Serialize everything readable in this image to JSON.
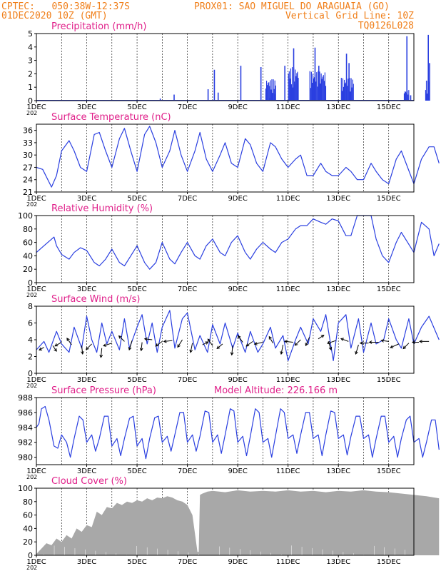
{
  "header": {
    "line1_left": "CPTEC:   050:38W-12:37S",
    "line1_right": "PROX01: SAO MIGUEL DO ARAGUAIA (GO)",
    "line2_left": "01DEC2020 10Z (GMT)",
    "line2_right": "Vertical Grid Line: 10Z",
    "line3_right": "TQ0126L028"
  },
  "colors": {
    "header_text": "#f07f1a",
    "panel_title": "#e0208a",
    "series_line": "#2a3fe0",
    "cloud_fill": "#a8a8a8",
    "axis": "#000000"
  },
  "x_axis": {
    "days": 15,
    "tick_labels": [
      "1DEC",
      "3DEC",
      "5DEC",
      "7DEC",
      "9DEC",
      "11DEC",
      "13DEC",
      "15DEC"
    ],
    "tick_days": [
      0,
      2,
      4,
      6,
      8,
      10,
      12,
      14
    ],
    "edge_label_fragment": "202"
  },
  "chart_data": [
    {
      "id": "precip",
      "type": "bar",
      "title": "Precipitation (mm/h)",
      "ylim": [
        0,
        5
      ],
      "yticks": [
        0,
        1,
        2,
        3,
        4,
        5
      ],
      "x_unit": "days since 01DEC2020",
      "spikes": [
        [
          4.9,
          0.15
        ],
        [
          5.05,
          0.05
        ],
        [
          5.45,
          0.45
        ],
        [
          6.8,
          0.85
        ],
        [
          7.05,
          2.3
        ],
        [
          7.2,
          0.6
        ],
        [
          8.1,
          2.6
        ],
        [
          8.9,
          2.5
        ],
        [
          9.1,
          0.55
        ],
        [
          9.25,
          0.2
        ],
        [
          9.45,
          0.5
        ],
        [
          9.85,
          2.6
        ],
        [
          10.2,
          3.9
        ],
        [
          10.25,
          1.2
        ],
        [
          10.35,
          0.9
        ],
        [
          11.05,
          3.95
        ],
        [
          11.2,
          2.6
        ],
        [
          11.3,
          1.6
        ],
        [
          12.3,
          3.5
        ],
        [
          12.4,
          2.8
        ],
        [
          14.7,
          4.8
        ],
        [
          14.85,
          0.4
        ],
        [
          15.55,
          4.9
        ],
        [
          15.6,
          2.8
        ]
      ],
      "clusters": [
        [
          9.1,
          9.5,
          1.6
        ],
        [
          10.0,
          10.4,
          2.5
        ],
        [
          10.85,
          11.5,
          2.2
        ],
        [
          12.1,
          12.6,
          1.7
        ],
        [
          14.6,
          14.8,
          0.8
        ],
        [
          15.45,
          15.62,
          1.5
        ]
      ]
    },
    {
      "id": "temp",
      "type": "line",
      "title": "Surface Temperature (nC)",
      "ylim": [
        21,
        37.5
      ],
      "yticks": [
        21,
        24,
        27,
        30,
        33,
        36
      ],
      "x": [
        0,
        0.25,
        0.6,
        0.8,
        1.0,
        1.3,
        1.5,
        1.75,
        2.0,
        2.3,
        2.5,
        2.75,
        3.0,
        3.3,
        3.5,
        3.75,
        4.0,
        4.3,
        4.5,
        4.75,
        5.0,
        5.3,
        5.5,
        5.75,
        6.0,
        6.3,
        6.5,
        6.75,
        7.0,
        7.3,
        7.5,
        7.75,
        8.0,
        8.3,
        8.5,
        8.75,
        9.0,
        9.3,
        9.5,
        9.75,
        10.0,
        10.3,
        10.5,
        10.75,
        11.0,
        11.3,
        11.5,
        11.75,
        12.0,
        12.3,
        12.5,
        12.75,
        13.0,
        13.3,
        13.5,
        13.75,
        14.0,
        14.3,
        14.5,
        14.75,
        15.0,
        15.3,
        15.6,
        15.8,
        16.0
      ],
      "y": [
        27,
        26.5,
        22.2,
        25,
        31,
        33.5,
        31,
        27,
        26,
        35,
        35.5,
        31,
        27,
        34,
        36.5,
        31,
        26,
        35,
        37,
        33,
        27,
        31,
        36,
        30,
        26,
        31,
        35.5,
        29,
        26,
        30,
        33,
        28,
        27,
        34,
        32.5,
        28,
        26,
        33,
        32,
        29,
        27,
        29,
        30,
        25,
        25,
        28,
        26,
        25,
        25,
        27,
        26,
        24,
        24,
        28,
        26,
        24,
        23,
        29,
        31,
        27,
        23,
        29,
        32,
        32,
        28
      ]
    },
    {
      "id": "rh",
      "type": "line",
      "title": "Relative Humidity (%)",
      "ylim": [
        0,
        100
      ],
      "yticks": [
        0,
        20,
        40,
        60,
        80,
        100
      ],
      "x": [
        0,
        0.3,
        0.7,
        0.8,
        1.0,
        1.3,
        1.5,
        1.75,
        2.0,
        2.3,
        2.5,
        2.75,
        3.0,
        3.3,
        3.5,
        3.75,
        4.0,
        4.3,
        4.5,
        4.75,
        5.0,
        5.3,
        5.5,
        5.75,
        6.0,
        6.3,
        6.5,
        6.75,
        7.0,
        7.3,
        7.5,
        7.75,
        8.0,
        8.3,
        8.5,
        8.75,
        9.0,
        9.3,
        9.5,
        9.75,
        10.0,
        10.3,
        10.5,
        10.75,
        11.0,
        11.3,
        11.5,
        11.75,
        12.0,
        12.3,
        12.5,
        12.75,
        13.0,
        13.3,
        13.5,
        13.75,
        14.0,
        14.3,
        14.5,
        14.75,
        15.0,
        15.3,
        15.6,
        15.8,
        16.0
      ],
      "y": [
        45,
        55,
        68,
        55,
        42,
        35,
        45,
        52,
        48,
        30,
        25,
        35,
        50,
        30,
        25,
        40,
        55,
        30,
        20,
        30,
        60,
        35,
        28,
        45,
        60,
        40,
        35,
        55,
        65,
        45,
        40,
        60,
        70,
        45,
        35,
        50,
        60,
        50,
        45,
        60,
        65,
        80,
        85,
        85,
        95,
        90,
        87,
        95,
        92,
        70,
        70,
        100,
        100,
        100,
        65,
        40,
        30,
        60,
        75,
        60,
        45,
        90,
        80,
        40,
        58
      ]
    },
    {
      "id": "wind",
      "type": "line",
      "title": "Surface Wind (m/s)",
      "ylim": [
        0,
        8
      ],
      "yticks": [
        0,
        2,
        4,
        6,
        8
      ],
      "x": [
        0,
        0.3,
        0.5,
        0.8,
        1.0,
        1.3,
        1.5,
        1.8,
        2.0,
        2.2,
        2.4,
        2.6,
        2.8,
        3.0,
        3.3,
        3.5,
        3.7,
        4.0,
        4.2,
        4.4,
        4.6,
        4.8,
        5.0,
        5.3,
        5.5,
        5.8,
        6.0,
        6.3,
        6.5,
        6.8,
        7.0,
        7.3,
        7.5,
        7.8,
        8.0,
        8.3,
        8.5,
        8.8,
        9.0,
        9.3,
        9.5,
        9.8,
        10.0,
        10.3,
        10.5,
        10.8,
        11.0,
        11.3,
        11.5,
        11.8,
        12.0,
        12.3,
        12.5,
        12.8,
        13.0,
        13.3,
        13.5,
        13.8,
        14.0,
        14.3,
        14.5,
        14.8,
        15.0,
        15.3,
        15.6,
        16.0
      ],
      "y": [
        2.8,
        3.8,
        2.5,
        5.0,
        3.5,
        2.5,
        5.5,
        3.0,
        6.8,
        4.0,
        2.5,
        6.0,
        3.5,
        5.0,
        2.8,
        6.5,
        3.0,
        5.5,
        7.0,
        3.5,
        6.0,
        2.5,
        5.5,
        7.5,
        3.0,
        6.5,
        7.2,
        2.8,
        4.5,
        2.5,
        5.8,
        3.5,
        6.0,
        3.0,
        4.8,
        2.5,
        5.0,
        2.5,
        3.5,
        5.5,
        3.0,
        4.5,
        1.5,
        4.0,
        5.5,
        3.5,
        6.5,
        5.0,
        7.0,
        1.5,
        6.0,
        7.0,
        3.0,
        6.5,
        2.5,
        6.0,
        3.5,
        4.0,
        6.5,
        4.0,
        3.0,
        6.5,
        3.5,
        5.5,
        6.8,
        4.0
      ],
      "arrows": [
        [
          0.3,
          3.1,
          -0.5,
          -0.3
        ],
        [
          0.65,
          3.3,
          0.4,
          -0.6
        ],
        [
          1.0,
          3.7,
          -0.7,
          -0.4
        ],
        [
          1.4,
          3.4,
          -0.5,
          0.7
        ],
        [
          1.8,
          3.3,
          0.1,
          -0.9
        ],
        [
          2.2,
          3.5,
          -0.6,
          -0.6
        ],
        [
          2.6,
          3.0,
          -0.1,
          -1.0
        ],
        [
          3.0,
          3.6,
          -0.9,
          -0.3
        ],
        [
          3.5,
          3.8,
          -0.6,
          0.6
        ],
        [
          3.8,
          3.9,
          -0.3,
          -1.0
        ],
        [
          4.2,
          3.7,
          -0.1,
          -0.9
        ],
        [
          4.6,
          4.0,
          -0.8,
          0.1
        ],
        [
          5.0,
          3.8,
          -0.7,
          -0.5
        ],
        [
          5.4,
          3.9,
          -0.9,
          -0.1
        ],
        [
          5.8,
          4.0,
          -0.5,
          -0.8
        ],
        [
          6.2,
          3.6,
          -0.2,
          -1.0
        ],
        [
          6.6,
          3.4,
          0.6,
          0.3
        ],
        [
          7.0,
          3.3,
          -0.5,
          0.7
        ],
        [
          7.4,
          3.5,
          -0.6,
          -0.5
        ],
        [
          7.8,
          3.3,
          -0.1,
          -1.0
        ],
        [
          8.2,
          3.7,
          -0.5,
          0.7
        ],
        [
          8.6,
          3.8,
          -0.7,
          -0.5
        ],
        [
          9.0,
          3.7,
          -0.9,
          -0.2
        ],
        [
          9.4,
          3.6,
          -0.4,
          0.7
        ],
        [
          9.8,
          3.4,
          -0.2,
          -1.0
        ],
        [
          10.2,
          3.7,
          -0.9,
          0.1
        ],
        [
          10.5,
          4.0,
          -0.6,
          -0.6
        ],
        [
          10.85,
          4.3,
          -0.4,
          -0.9
        ],
        [
          11.2,
          4.1,
          0.6,
          0.4
        ],
        [
          11.6,
          3.8,
          0.3,
          -0.9
        ],
        [
          11.9,
          3.9,
          -0.9,
          -0.3
        ],
        [
          12.4,
          3.8,
          -0.8,
          0.3
        ],
        [
          12.8,
          3.4,
          -0.3,
          -1.0
        ],
        [
          13.2,
          3.6,
          -0.9,
          0.0
        ],
        [
          13.6,
          3.7,
          -1.0,
          0.0
        ],
        [
          14.0,
          3.8,
          -0.8,
          0.1
        ],
        [
          14.4,
          3.5,
          -0.9,
          -0.4
        ],
        [
          14.8,
          3.6,
          -0.6,
          -0.6
        ],
        [
          15.2,
          3.7,
          -0.7,
          0.0
        ],
        [
          15.6,
          3.8,
          -1.0,
          0.0
        ]
      ]
    },
    {
      "id": "press",
      "type": "line",
      "title": "Surface Pressure (hPa)",
      "subtitle": "Model Altitude: 226.166 m",
      "ylim": [
        979,
        988
      ],
      "yticks": [
        980,
        982,
        984,
        986,
        988
      ],
      "x": [
        0,
        0.1,
        0.2,
        0.35,
        0.5,
        0.7,
        0.85,
        1.0,
        1.2,
        1.35,
        1.5,
        1.7,
        1.85,
        2.0,
        2.2,
        2.35,
        2.5,
        2.7,
        2.85,
        3.0,
        3.2,
        3.35,
        3.5,
        3.7,
        3.85,
        4.0,
        4.2,
        4.35,
        4.5,
        4.7,
        4.85,
        5.0,
        5.2,
        5.35,
        5.5,
        5.7,
        5.85,
        6.0,
        6.2,
        6.35,
        6.5,
        6.7,
        6.85,
        7.0,
        7.2,
        7.35,
        7.5,
        7.7,
        7.85,
        8.0,
        8.2,
        8.35,
        8.5,
        8.7,
        8.85,
        9.0,
        9.2,
        9.35,
        9.5,
        9.7,
        9.85,
        10.0,
        10.2,
        10.35,
        10.5,
        10.7,
        10.85,
        11.0,
        11.2,
        11.35,
        11.5,
        11.7,
        11.85,
        12.0,
        12.2,
        12.35,
        12.5,
        12.7,
        12.85,
        13.0,
        13.2,
        13.35,
        13.5,
        13.7,
        13.85,
        14.0,
        14.2,
        14.35,
        14.5,
        14.7,
        14.85,
        15.0,
        15.2,
        15.35,
        15.5,
        15.7,
        15.85,
        16.0
      ],
      "y": [
        984.0,
        984.5,
        986.5,
        986.8,
        985.0,
        981.5,
        981.2,
        983.0,
        982.0,
        980.0,
        982.5,
        985.5,
        985.0,
        982.0,
        983.0,
        980.8,
        982.5,
        985.5,
        985.5,
        981.5,
        982.5,
        980.2,
        982.5,
        985.2,
        985.5,
        981.5,
        982.5,
        979.8,
        982.5,
        985.3,
        985.5,
        982.0,
        982.8,
        980.8,
        983.0,
        986.0,
        986.0,
        982.0,
        983.0,
        980.8,
        982.8,
        986.2,
        986.0,
        982.0,
        983.0,
        980.5,
        983.0,
        986.5,
        986.2,
        982.0,
        982.8,
        980.2,
        982.8,
        986.5,
        986.0,
        982.0,
        982.5,
        980.0,
        982.8,
        986.5,
        986.0,
        982.5,
        983.0,
        980.5,
        983.0,
        986.0,
        986.0,
        982.5,
        983.0,
        980.2,
        983.0,
        986.2,
        986.0,
        982.5,
        983.0,
        980.3,
        982.8,
        985.5,
        985.5,
        982.5,
        983.0,
        980.0,
        982.5,
        985.5,
        985.5,
        982.0,
        982.8,
        980.0,
        982.5,
        985.0,
        985.5,
        982.0,
        982.5,
        980.0,
        982.0,
        985.0,
        985.0,
        981.0
      ]
    },
    {
      "id": "cloud",
      "type": "area",
      "title": "Cloud Cover (%)",
      "ylim": [
        0,
        100
      ],
      "yticks": [
        0,
        20,
        40,
        60,
        80,
        100
      ],
      "x": [
        0,
        0.2,
        0.4,
        0.6,
        0.8,
        1.0,
        1.2,
        1.4,
        1.6,
        1.8,
        2.0,
        2.2,
        2.4,
        2.6,
        2.8,
        3.0,
        3.2,
        3.4,
        3.6,
        3.8,
        4.0,
        4.2,
        4.4,
        4.6,
        4.8,
        5.0,
        5.2,
        5.4,
        5.6,
        5.8,
        6.0,
        6.2,
        6.4,
        6.45,
        6.5,
        6.6,
        6.8,
        7.0,
        7.5,
        8.0,
        8.5,
        9.0,
        9.5,
        10.0,
        10.5,
        11.0,
        11.5,
        12.0,
        12.5,
        13.0,
        13.5,
        14.0,
        14.5,
        15.0,
        15.5,
        16.0
      ],
      "y": [
        2,
        10,
        18,
        15,
        25,
        20,
        30,
        25,
        40,
        35,
        45,
        42,
        65,
        60,
        72,
        70,
        78,
        75,
        80,
        78,
        82,
        80,
        85,
        82,
        86,
        85,
        88,
        86,
        82,
        80,
        75,
        60,
        5,
        5,
        90,
        92,
        95,
        96,
        94,
        97,
        95,
        96,
        95,
        97,
        95,
        96,
        94,
        96,
        95,
        97,
        95,
        94,
        92,
        90,
        88,
        85
      ]
    }
  ]
}
